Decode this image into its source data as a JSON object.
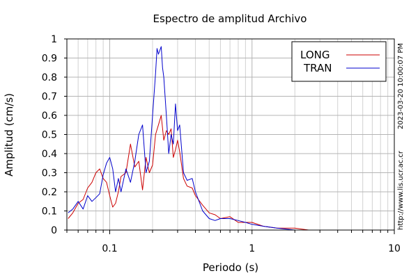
{
  "chart_data": {
    "type": "line",
    "title": "Espectro de amplitud Archivo",
    "xlabel": "Periodo (s)",
    "ylabel": "Amplitud (cm/s)",
    "xscale": "log",
    "xlim": [
      0.05,
      10
    ],
    "ylim": [
      0,
      1
    ],
    "x_ticks": [
      {
        "value": 0.1,
        "label": "0.1"
      },
      {
        "value": 1,
        "label": "1"
      },
      {
        "value": 10,
        "label": "10"
      }
    ],
    "y_ticks": [
      {
        "value": 0,
        "label": "0"
      },
      {
        "value": 0.1,
        "label": "0.1"
      },
      {
        "value": 0.2,
        "label": "0.2"
      },
      {
        "value": 0.3,
        "label": "0.3"
      },
      {
        "value": 0.4,
        "label": "0.4"
      },
      {
        "value": 0.5,
        "label": "0.5"
      },
      {
        "value": 0.6,
        "label": "0.6"
      },
      {
        "value": 0.7,
        "label": "0.7"
      },
      {
        "value": 0.8,
        "label": "0.8"
      },
      {
        "value": 0.9,
        "label": "0.9"
      },
      {
        "value": 1,
        "label": "1"
      }
    ],
    "grid": true,
    "legend_position": "top-right",
    "side_texts": [
      "2023-03-20 10:00:07 PM",
      "http://www.lis.ucr.ac.cr"
    ],
    "series": [
      {
        "name": "LONG",
        "color": "#cc0000",
        "x": [
          0.051,
          0.055,
          0.06,
          0.065,
          0.07,
          0.075,
          0.08,
          0.085,
          0.09,
          0.095,
          0.1,
          0.105,
          0.11,
          0.115,
          0.12,
          0.13,
          0.14,
          0.15,
          0.16,
          0.17,
          0.18,
          0.19,
          0.2,
          0.21,
          0.22,
          0.23,
          0.24,
          0.25,
          0.26,
          0.27,
          0.28,
          0.29,
          0.3,
          0.31,
          0.33,
          0.35,
          0.38,
          0.4,
          0.45,
          0.5,
          0.55,
          0.6,
          0.7,
          0.8,
          0.9,
          1.0,
          1.2,
          1.5,
          2.0,
          2.5,
          3,
          4,
          5,
          7,
          10
        ],
        "y": [
          0.06,
          0.09,
          0.14,
          0.16,
          0.22,
          0.25,
          0.3,
          0.32,
          0.27,
          0.25,
          0.18,
          0.12,
          0.14,
          0.2,
          0.28,
          0.3,
          0.45,
          0.33,
          0.36,
          0.21,
          0.38,
          0.3,
          0.34,
          0.5,
          0.55,
          0.6,
          0.47,
          0.52,
          0.5,
          0.53,
          0.38,
          0.42,
          0.47,
          0.41,
          0.27,
          0.23,
          0.22,
          0.18,
          0.13,
          0.09,
          0.08,
          0.06,
          0.07,
          0.04,
          0.04,
          0.04,
          0.02,
          0.01,
          0.01,
          0.0,
          0.0,
          0.0,
          0.0,
          0.0,
          0.0
        ]
      },
      {
        "name": "TRAN",
        "color": "#0000cc",
        "x": [
          0.051,
          0.055,
          0.06,
          0.065,
          0.07,
          0.075,
          0.08,
          0.085,
          0.09,
          0.095,
          0.1,
          0.105,
          0.11,
          0.115,
          0.12,
          0.13,
          0.14,
          0.15,
          0.16,
          0.17,
          0.18,
          0.19,
          0.2,
          0.21,
          0.215,
          0.22,
          0.23,
          0.235,
          0.24,
          0.25,
          0.26,
          0.27,
          0.28,
          0.29,
          0.3,
          0.31,
          0.33,
          0.35,
          0.38,
          0.4,
          0.45,
          0.5,
          0.55,
          0.6,
          0.7,
          0.8,
          0.9,
          1.0,
          1.2,
          1.5,
          2.0,
          2.5,
          3,
          4,
          5,
          7,
          10
        ],
        "y": [
          0.09,
          0.11,
          0.15,
          0.11,
          0.18,
          0.15,
          0.17,
          0.19,
          0.29,
          0.35,
          0.38,
          0.32,
          0.2,
          0.27,
          0.2,
          0.32,
          0.25,
          0.36,
          0.5,
          0.55,
          0.3,
          0.36,
          0.6,
          0.82,
          0.95,
          0.92,
          0.96,
          0.85,
          0.8,
          0.6,
          0.4,
          0.5,
          0.45,
          0.66,
          0.52,
          0.55,
          0.3,
          0.26,
          0.27,
          0.2,
          0.1,
          0.06,
          0.05,
          0.06,
          0.06,
          0.05,
          0.04,
          0.03,
          0.02,
          0.01,
          0.0,
          0.0,
          0.0,
          0.0,
          0.0,
          0.0,
          0.0
        ]
      }
    ]
  }
}
